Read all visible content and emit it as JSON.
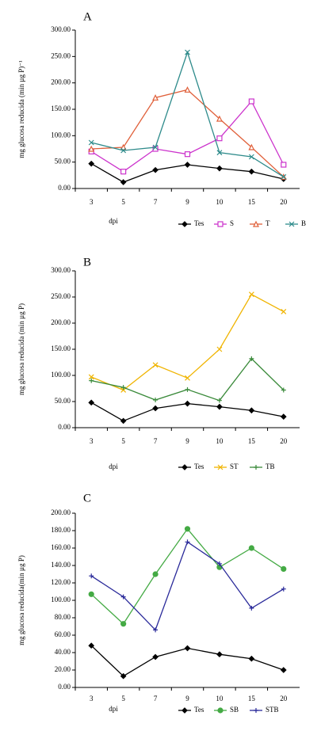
{
  "chart_data": [
    {
      "type": "line",
      "title": "A",
      "y_label": "mg glucosa reducida (min µg P)⁻¹",
      "x_label": "dpi",
      "categories": [
        "3",
        "5",
        "7",
        "9",
        "10",
        "15",
        "20"
      ],
      "ylim": [
        0,
        300
      ],
      "yticks": [
        {
          "value": 0,
          "label": "0.00"
        },
        {
          "value": 50,
          "label": "50.00"
        },
        {
          "value": 100,
          "label": "100.00"
        },
        {
          "value": 150,
          "label": "150.00"
        },
        {
          "value": 200,
          "label": "200.00"
        },
        {
          "value": 250,
          "label": "250.00"
        },
        {
          "value": 300,
          "label": "300.00"
        }
      ],
      "series": [
        {
          "name": "Tes",
          "color": "#000000",
          "marker": "diamond",
          "values": [
            47,
            12,
            35,
            45,
            38,
            32,
            18
          ]
        },
        {
          "name": "S",
          "color": "#cc33cc",
          "marker": "square",
          "values": [
            70,
            32,
            75,
            65,
            95,
            165,
            45
          ]
        },
        {
          "name": "T",
          "color": "#e0603a",
          "marker": "triangle",
          "values": [
            75,
            78,
            172,
            187,
            132,
            78,
            22
          ]
        },
        {
          "name": "B",
          "color": "#2e8b8b",
          "marker": "cross",
          "values": [
            87,
            72,
            78,
            258,
            68,
            60,
            22
          ]
        }
      ]
    },
    {
      "type": "line",
      "title": "B",
      "y_label": "mg glucosa reducida (min µg P)",
      "x_label": "dpi",
      "categories": [
        "3",
        "5",
        "7",
        "9",
        "10",
        "15",
        "20"
      ],
      "ylim": [
        0,
        300
      ],
      "yticks": [
        {
          "value": 0,
          "label": "0.00"
        },
        {
          "value": 50,
          "label": "50.00"
        },
        {
          "value": 100,
          "label": "100.00"
        },
        {
          "value": 150,
          "label": "150.00"
        },
        {
          "value": 200,
          "label": "200.00"
        },
        {
          "value": 250,
          "label": "250.00"
        },
        {
          "value": 300,
          "label": "300.00"
        }
      ],
      "series": [
        {
          "name": "Tes",
          "color": "#000000",
          "marker": "diamond",
          "values": [
            48,
            13,
            37,
            46,
            40,
            33,
            21
          ]
        },
        {
          "name": "ST",
          "color": "#f0b400",
          "marker": "cross",
          "values": [
            97,
            72,
            120,
            95,
            150,
            255,
            222
          ]
        },
        {
          "name": "TB",
          "color": "#3a8a3a",
          "marker": "plus",
          "values": [
            90,
            77,
            53,
            73,
            52,
            132,
            72
          ]
        }
      ]
    },
    {
      "type": "line",
      "title": "C",
      "y_label": "mg glucosa reducida(min µg P)",
      "x_label": "dpi",
      "categories": [
        "3",
        "5",
        "7",
        "9",
        "10",
        "15",
        "20"
      ],
      "ylim": [
        0,
        200
      ],
      "yticks": [
        {
          "value": 0,
          "label": "0.00"
        },
        {
          "value": 20,
          "label": "20.00"
        },
        {
          "value": 40,
          "label": "40.00"
        },
        {
          "value": 60,
          "label": "60.00"
        },
        {
          "value": 80,
          "label": "80.00"
        },
        {
          "value": 100,
          "label": "100.00"
        },
        {
          "value": 120,
          "label": "120.00"
        },
        {
          "value": 140,
          "label": "140.00"
        },
        {
          "value": 160,
          "label": "160.00"
        },
        {
          "value": 180,
          "label": "180.00"
        },
        {
          "value": 200,
          "label": "200.00"
        }
      ],
      "series": [
        {
          "name": "Tes",
          "color": "#000000",
          "marker": "diamond",
          "values": [
            48,
            13,
            35,
            45,
            38,
            33,
            20
          ]
        },
        {
          "name": "SB",
          "color": "#44aa44",
          "marker": "circle",
          "values": [
            107,
            73,
            130,
            182,
            138,
            160,
            136
          ]
        },
        {
          "name": "STB",
          "color": "#2a2a9a",
          "marker": "plus",
          "values": [
            128,
            104,
            66,
            167,
            142,
            91,
            113
          ]
        }
      ]
    }
  ]
}
